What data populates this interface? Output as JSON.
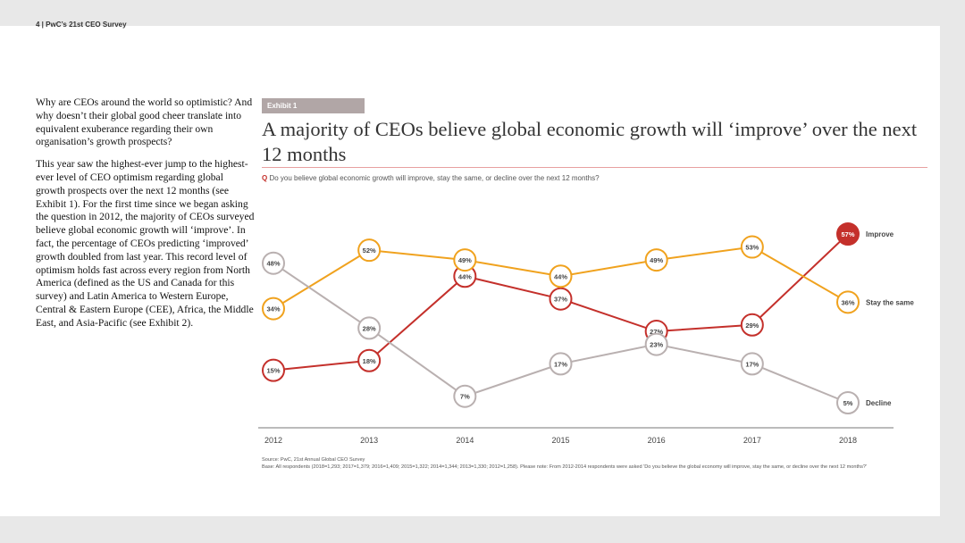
{
  "header": {
    "text": "4 | PwC’s 21st CEO Survey"
  },
  "body": {
    "p1": "Why are CEOs around the world so optimistic? And why doesn’t their global good cheer translate into equivalent exuberance regarding their own organisation’s growth prospects?",
    "p2": "This year saw the highest-ever jump to the highest-ever level of CEO optimism regarding global growth prospects over the next 12 months (see Exhibit 1). For the first time since we began asking the question in 2012, the majority of CEOs surveyed believe global economic growth will ‘improve’. In fact, the percentage of CEOs predicting ‘improved’ growth doubled from last year. This record level of optimism holds fast across every region from North America (defined as the US and Canada for this survey) and Latin America to Western Europe, Central & Eastern Europe (CEE), Africa, the Middle East, and Asia-Pacific (see Exhibit 2)."
  },
  "exhibit": {
    "tag": "Exhibit 1",
    "question_prefix": "Q",
    "question": "Do you believe global economic growth will improve, stay the same, or decline over the next 12 months?",
    "source": "Source: PwC, 21st Annual Global CEO Survey",
    "base": "Base: All respondents (2018=1,293; 2017=1,379; 2016=1,409; 2015=1,322; 2014=1,344; 2013=1,330; 2012=1,258). Please note: From 2012-2014 respondents were asked 'Do you believe the global economy will improve, stay the same, or decline over the next 12 months?'"
  },
  "chart_data": {
    "type": "line",
    "title": "A majority of CEOs believe global economic growth will ‘improve’ over the next 12 months",
    "categories": [
      "2012",
      "2013",
      "2014",
      "2015",
      "2016",
      "2017",
      "2018"
    ],
    "series": [
      {
        "name": "Improve",
        "color": "#c4302b",
        "values": [
          15,
          18,
          44,
          37,
          27,
          29,
          57
        ]
      },
      {
        "name": "Stay the same",
        "color": "#f0a21e",
        "values": [
          34,
          52,
          49,
          44,
          49,
          53,
          36
        ]
      },
      {
        "name": "Decline",
        "color": "#b9b0b0",
        "values": [
          48,
          28,
          7,
          17,
          23,
          17,
          5
        ]
      }
    ],
    "ylim": [
      0,
      60
    ],
    "unit": "%"
  }
}
